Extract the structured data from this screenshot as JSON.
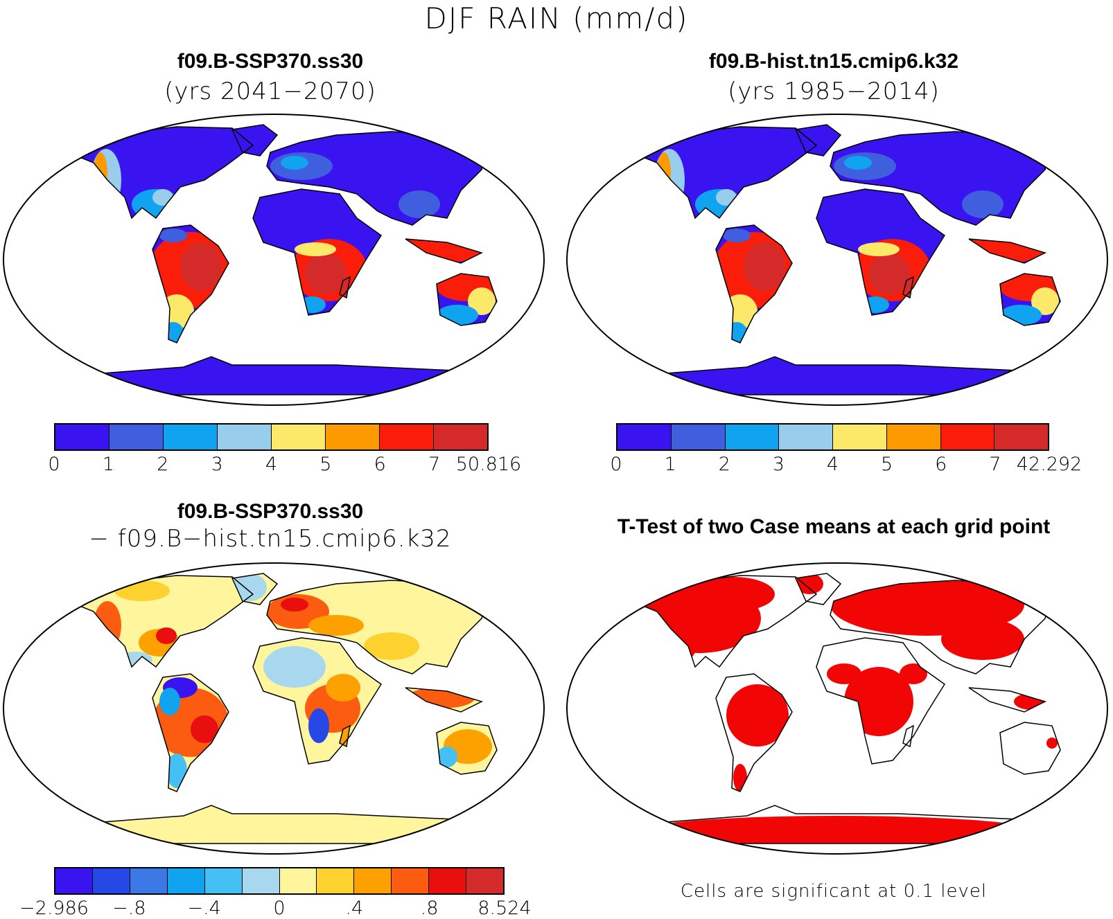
{
  "figure": {
    "title": "DJF RAIN (mm/d)"
  },
  "panels": [
    {
      "title": "f09.B-SSP370.ss30",
      "subtitle": "(yrs 2041−2070)",
      "colorbar": {
        "colors": [
          "#3a14f0",
          "#3f5fdf",
          "#10a3f0",
          "#98cdeb",
          "#fce96a",
          "#fd9a00",
          "#fa1e0a",
          "#d52a2a"
        ],
        "labels": [
          "0",
          "1",
          "2",
          "3",
          "4",
          "5",
          "6",
          "7",
          "50.816"
        ]
      }
    },
    {
      "title": "f09.B-hist.tn15.cmip6.k32",
      "subtitle": "(yrs 1985−2014)",
      "colorbar": {
        "colors": [
          "#3a14f0",
          "#3f5fdf",
          "#10a3f0",
          "#98cdeb",
          "#fce96a",
          "#fd9a00",
          "#fa1e0a",
          "#d52a2a"
        ],
        "labels": [
          "0",
          "1",
          "2",
          "3",
          "4",
          "5",
          "6",
          "7",
          "42.292"
        ]
      }
    },
    {
      "title": "f09.B-SSP370.ss30",
      "subtitle": "− f09.B−hist.tn15.cmip6.k32",
      "colorbar": {
        "colors": [
          "#3a14f0",
          "#2548e6",
          "#3c78e6",
          "#10a3f0",
          "#45c0f5",
          "#a8d8ee",
          "#fff59d",
          "#fdd22f",
          "#fda101",
          "#fb5c10",
          "#ea0f0f",
          "#d52a2a"
        ],
        "labels": [
          "−2.986",
          "−.8",
          "−.4",
          "0",
          ".4",
          ".8",
          "8.524"
        ]
      }
    },
    {
      "title": "T-Test of two Case means at each grid point",
      "footnote": "Cells are significant at 0.1 level",
      "sig_color": "#f20505"
    }
  ]
}
